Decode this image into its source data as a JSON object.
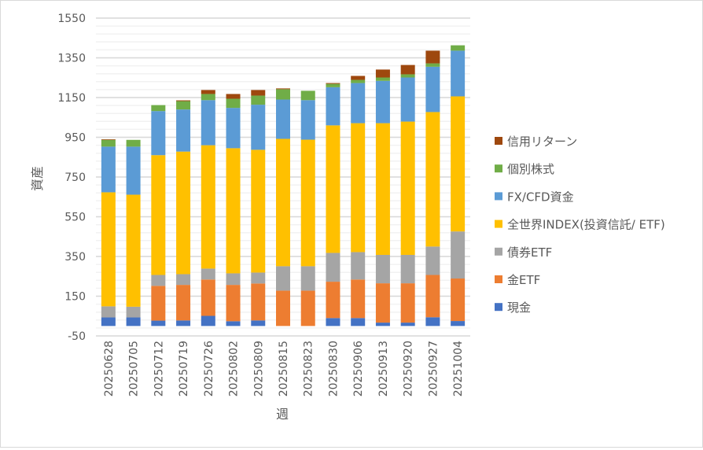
{
  "chart_data": {
    "type": "bar",
    "stacked": true,
    "title": "",
    "xlabel": "週",
    "ylabel": "資産",
    "ylim": [
      -50,
      1550
    ],
    "yticks": [
      -50,
      150,
      350,
      550,
      750,
      950,
      1150,
      1350,
      1550
    ],
    "grid": true,
    "legend_position": "right",
    "categories": [
      "20250628",
      "20250705",
      "20250712",
      "20250719",
      "20250726",
      "20250802",
      "20250809",
      "20250815",
      "20250823",
      "20250830",
      "20250906",
      "20250913",
      "20250920",
      "20250927",
      "20251004"
    ],
    "series": [
      {
        "name": "現金",
        "color": "#4472C4",
        "values": [
          43,
          43,
          27,
          28,
          51,
          24,
          28,
          0,
          0,
          40,
          40,
          17,
          17,
          44,
          25
        ]
      },
      {
        "name": "金ETF",
        "color": "#ED7D31",
        "values": [
          0,
          0,
          175,
          179,
          183,
          183,
          186,
          178,
          178,
          183,
          194,
          198,
          198,
          213,
          214
        ]
      },
      {
        "name": "債券ETF",
        "color": "#A5A5A5",
        "values": [
          56,
          54,
          55,
          54,
          55,
          58,
          55,
          123,
          123,
          145,
          138,
          143,
          143,
          143,
          237
        ]
      },
      {
        "name": "全世界INDEX(投資信託/ ETF)",
        "color": "#FFC000",
        "values": [
          574,
          564,
          603,
          617,
          621,
          630,
          618,
          641,
          637,
          642,
          649,
          663,
          671,
          677,
          680
        ]
      },
      {
        "name": "FX/CFD資金",
        "color": "#5B9BD5",
        "values": [
          230,
          242,
          222,
          212,
          227,
          203,
          227,
          198,
          199,
          192,
          202,
          213,
          222,
          228,
          230
        ]
      },
      {
        "name": "個別株式",
        "color": "#70AD47",
        "values": [
          34,
          34,
          30,
          42,
          31,
          46,
          46,
          52,
          47,
          17,
          16,
          17,
          16,
          17,
          27
        ]
      },
      {
        "name": "信用リターン",
        "color": "#9E480E",
        "values": [
          3,
          0,
          0,
          4,
          20,
          24,
          28,
          4,
          0,
          4,
          20,
          40,
          47,
          64,
          0
        ]
      }
    ]
  }
}
